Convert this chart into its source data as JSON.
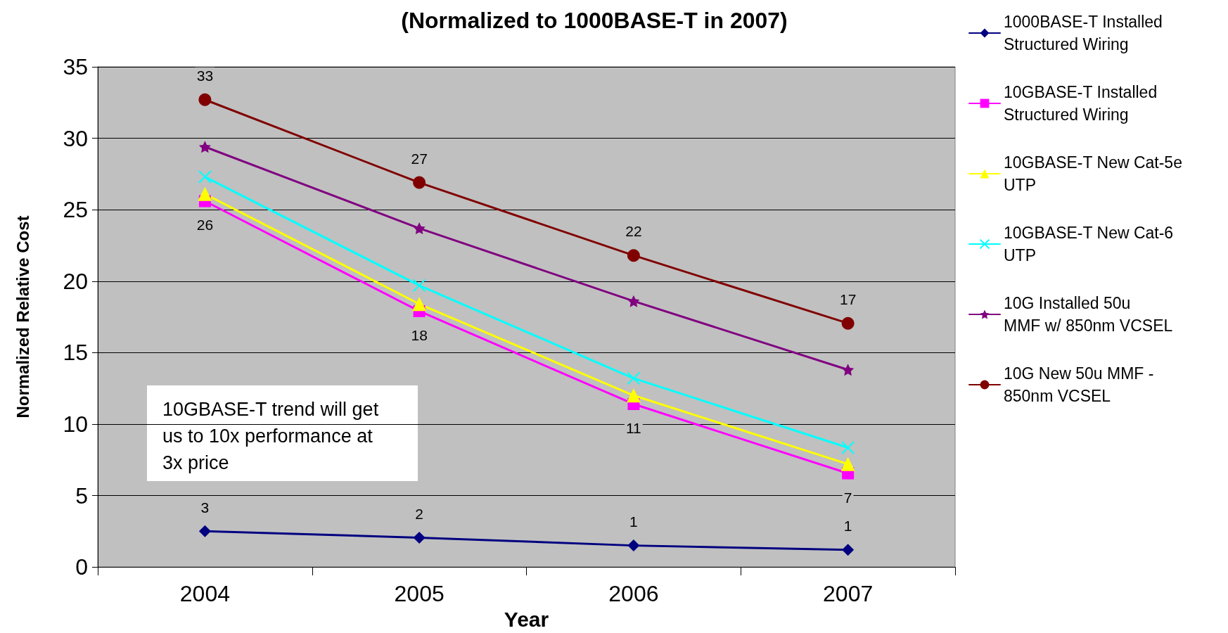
{
  "chart_data": {
    "type": "line",
    "title": "(Normalized to 1000BASE-T in 2007)",
    "xlabel": "Year",
    "ylabel": "Normalized Relative Cost",
    "categories": [
      "2004",
      "2005",
      "2006",
      "2007"
    ],
    "series": [
      {
        "name": "1000BASE-T Installed Structured Wiring",
        "color": "#000080",
        "marker": "diamond",
        "values": [
          2.5,
          2.05,
          1.5,
          1.2
        ],
        "value_labels": [
          "3",
          "2",
          "1",
          "1"
        ]
      },
      {
        "name": "10GBASE-T Installed Structured Wiring",
        "color": "#ff00ff",
        "marker": "square",
        "values": [
          25.6,
          17.9,
          11.4,
          6.55
        ],
        "value_labels": [
          "26",
          "18",
          "11",
          "7"
        ]
      },
      {
        "name": "10GBASE-T New Cat-5e UTP",
        "color": "#ffff00",
        "marker": "triangle",
        "values": [
          26.1,
          18.4,
          12.0,
          7.2
        ]
      },
      {
        "name": "10GBASE-T New Cat-6 UTP",
        "color": "#00ffff",
        "marker": "cross",
        "values": [
          27.3,
          19.7,
          13.2,
          8.35
        ]
      },
      {
        "name": "10G Installed 50u MMF w/ 850nm VCSEL",
        "color": "#800080",
        "marker": "star",
        "values": [
          29.4,
          23.7,
          18.6,
          13.8
        ]
      },
      {
        "name": "10G New 50u MMF - 850nm VCSEL",
        "color": "#800000",
        "marker": "circle",
        "values": [
          32.7,
          26.9,
          21.8,
          17.05
        ],
        "value_labels": [
          "33",
          "27",
          "22",
          "17"
        ]
      }
    ],
    "ylim": [
      0,
      35
    ],
    "yticks": [
      0,
      5,
      10,
      15,
      20,
      25,
      30,
      35
    ],
    "grid": "y",
    "legend": "right",
    "annotations": [
      "10GBASE-T trend will get us to 10x performance at 3x price"
    ]
  }
}
